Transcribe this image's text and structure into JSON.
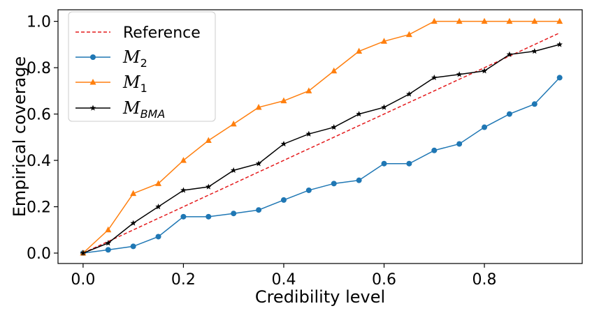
{
  "chart_data": {
    "type": "line",
    "xlabel": "Credibility level",
    "ylabel": "Empirical coverage",
    "xlim": [
      -0.05,
      0.995
    ],
    "ylim": [
      -0.045,
      1.05
    ],
    "xticks": [
      0.0,
      0.2,
      0.4,
      0.6,
      0.8
    ],
    "xtick_labels": [
      "0.0",
      "0.2",
      "0.4",
      "0.6",
      "0.8"
    ],
    "yticks": [
      0.0,
      0.2,
      0.4,
      0.6,
      0.8,
      1.0
    ],
    "ytick_labels": [
      "0.0",
      "0.2",
      "0.4",
      "0.6",
      "0.8",
      "1.0"
    ],
    "grid": false,
    "legend_position": "upper-left",
    "series": [
      {
        "key": "reference",
        "name": "Reference",
        "color": "#e41a1c",
        "style": "dashed",
        "marker": "none",
        "x": [
          0.0,
          0.95
        ],
        "y": [
          0.0,
          0.95
        ]
      },
      {
        "key": "m2",
        "name": "M2",
        "color": "#1f77b4",
        "style": "solid",
        "marker": "circle",
        "x": [
          0.0,
          0.05,
          0.1,
          0.15,
          0.2,
          0.25,
          0.3,
          0.35,
          0.4,
          0.45,
          0.5,
          0.55,
          0.6,
          0.65,
          0.7,
          0.75,
          0.8,
          0.85,
          0.9,
          0.95
        ],
        "y": [
          0.0,
          0.014,
          0.029,
          0.071,
          0.157,
          0.157,
          0.171,
          0.186,
          0.229,
          0.271,
          0.3,
          0.314,
          0.386,
          0.386,
          0.443,
          0.471,
          0.543,
          0.6,
          0.643,
          0.757
        ]
      },
      {
        "key": "m1",
        "name": "M1",
        "color": "#ff7f0e",
        "style": "solid",
        "marker": "triangle",
        "x": [
          0.0,
          0.05,
          0.1,
          0.15,
          0.2,
          0.25,
          0.3,
          0.35,
          0.4,
          0.45,
          0.5,
          0.55,
          0.6,
          0.65,
          0.7,
          0.75,
          0.8,
          0.85,
          0.9,
          0.95
        ],
        "y": [
          0.0,
          0.1,
          0.257,
          0.3,
          0.4,
          0.486,
          0.557,
          0.629,
          0.657,
          0.7,
          0.786,
          0.871,
          0.914,
          0.943,
          1.0,
          1.0,
          1.0,
          1.0,
          1.0,
          1.0
        ]
      },
      {
        "key": "mbma",
        "name": "MBMA",
        "color": "#000000",
        "style": "solid",
        "marker": "star",
        "x": [
          0.0,
          0.05,
          0.1,
          0.15,
          0.2,
          0.25,
          0.3,
          0.35,
          0.4,
          0.45,
          0.5,
          0.55,
          0.6,
          0.65,
          0.7,
          0.75,
          0.8,
          0.85,
          0.9,
          0.95
        ],
        "y": [
          0.0,
          0.043,
          0.129,
          0.2,
          0.271,
          0.286,
          0.357,
          0.386,
          0.471,
          0.514,
          0.543,
          0.6,
          0.629,
          0.686,
          0.757,
          0.771,
          0.786,
          0.857,
          0.871,
          0.9
        ]
      }
    ],
    "legend": {
      "reference_label": "Reference",
      "m2_script": "M",
      "m2_sub": "2",
      "m1_script": "M",
      "m1_sub": "1",
      "mbma_script": "M",
      "mbma_sub": "BMA"
    }
  }
}
